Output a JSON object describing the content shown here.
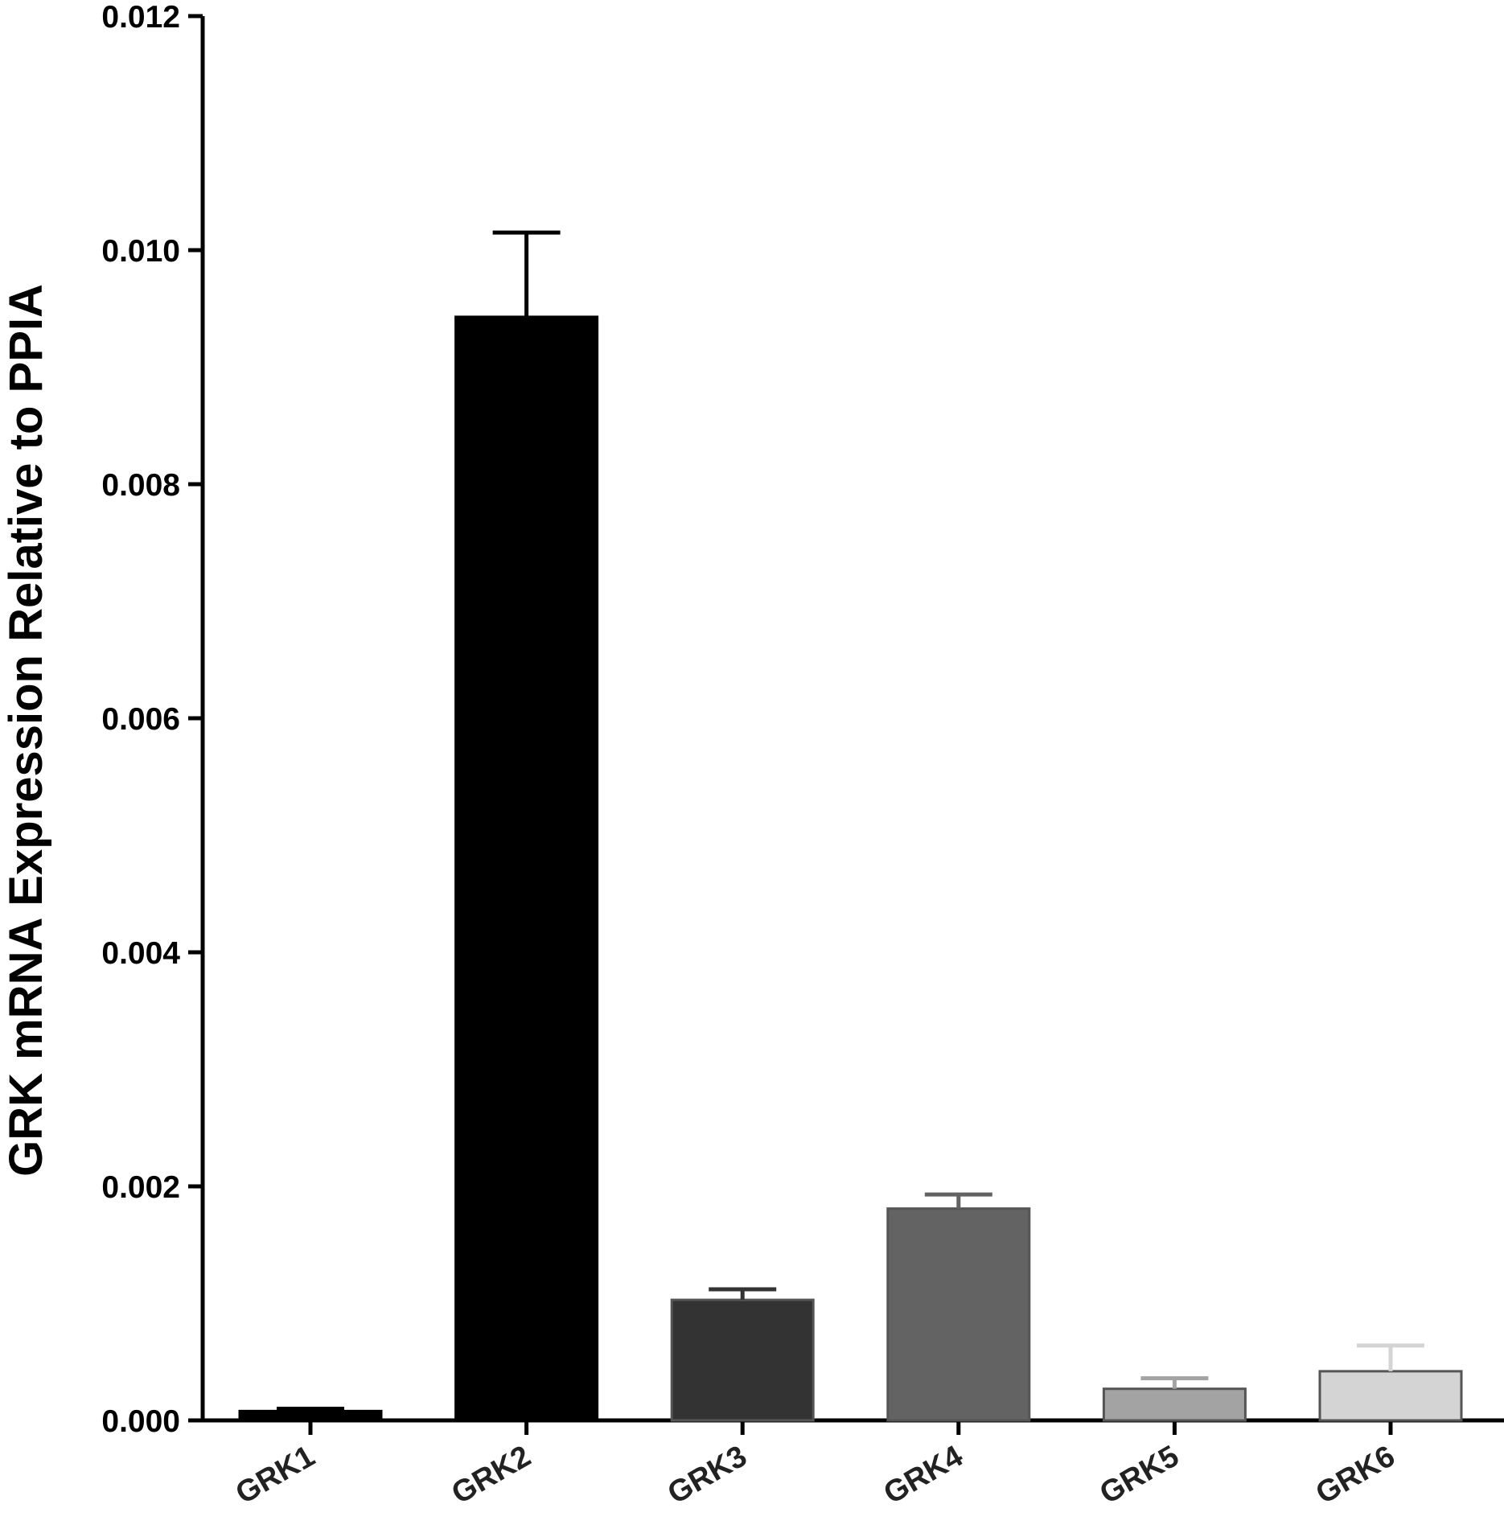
{
  "chart_data": {
    "type": "bar",
    "title": "",
    "xlabel": "",
    "ylabel": "GRK mRNA Expression Relative to PPIA",
    "ylim": [
      0,
      0.012
    ],
    "yticks": [
      "0.000",
      "0.002",
      "0.004",
      "0.006",
      "0.008",
      "0.010",
      "0.012"
    ],
    "categories": [
      "GRK1",
      "GRK2",
      "GRK3",
      "GRK4",
      "GRK5",
      "GRK6"
    ],
    "values": [
      8e-05,
      0.00943,
      0.00103,
      0.00181,
      0.00027,
      0.00042
    ],
    "errors": [
      2e-05,
      0.00072,
      9e-05,
      0.00012,
      9e-05,
      0.00022
    ],
    "colors": [
      "#000000",
      "#000000",
      "#333333",
      "#636363",
      "#a3a3a3",
      "#d4d4d4"
    ],
    "grid": false,
    "legend": "none"
  }
}
